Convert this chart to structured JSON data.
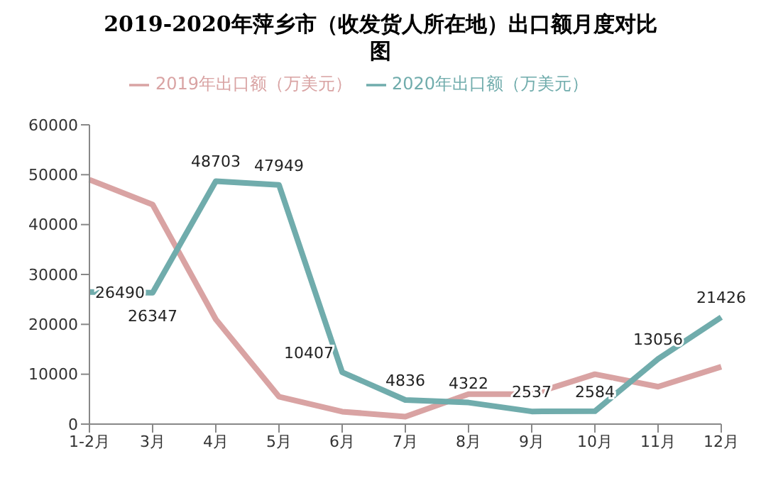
{
  "chart_data": {
    "type": "line",
    "title": "2019-2020年萍乡市（收发货人所在地）出口额月度对比图",
    "categories": [
      "1-2月",
      "3月",
      "4月",
      "5月",
      "6月",
      "7月",
      "8月",
      "9月",
      "10月",
      "11月",
      "12月"
    ],
    "series": [
      {
        "name": "2019年出口额（万美元）",
        "color": "#d9a3a3",
        "values": [
          49000,
          44000,
          21000,
          5500,
          2500,
          1500,
          6000,
          6000,
          10000,
          7500,
          11500
        ]
      },
      {
        "name": "2020年出口额（万美元）",
        "color": "#70acac",
        "values": [
          26490,
          26347,
          48703,
          47949,
          10407,
          4836,
          4322,
          2537,
          2584,
          13056,
          21426
        ],
        "value_labels": [
          "26490",
          "26347",
          "48703",
          "47949",
          "10407",
          "4836",
          "4322",
          "2537",
          "2584",
          "13056",
          "21426"
        ]
      }
    ],
    "ylim": [
      0,
      60000
    ],
    "yticks": [
      0,
      10000,
      20000,
      30000,
      40000,
      50000,
      60000
    ],
    "grid": false,
    "legend": "top",
    "marker": "none",
    "line_style": "solid"
  }
}
